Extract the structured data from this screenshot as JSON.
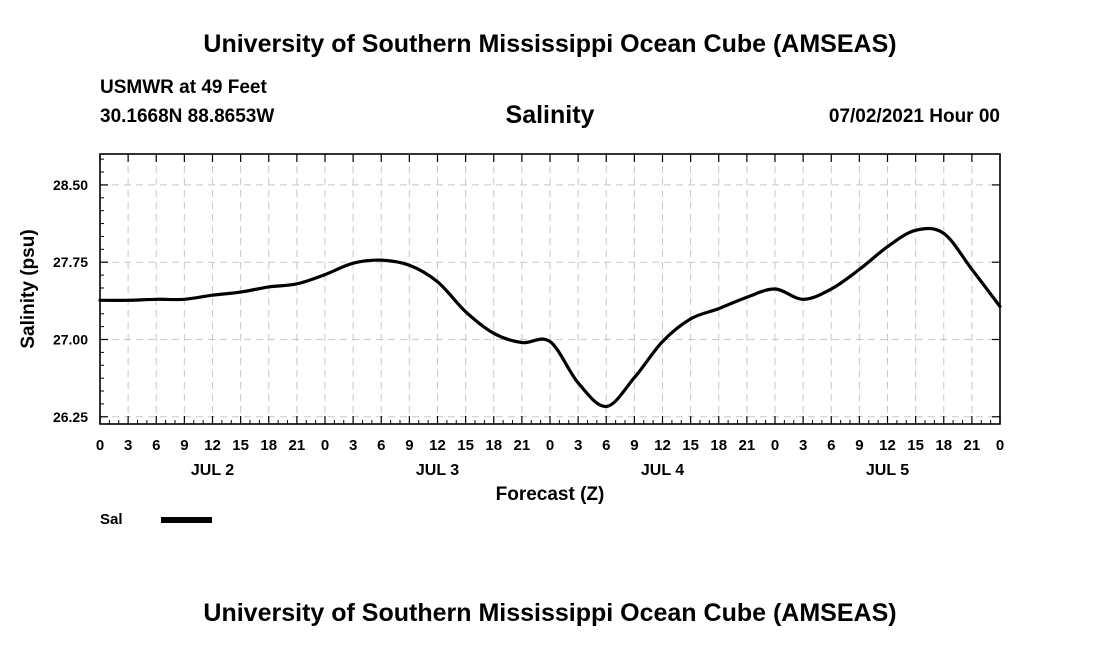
{
  "header": {
    "title": "University of Southern Mississippi Ocean Cube (AMSEAS)",
    "station": "USMWR at 49 Feet",
    "coords": "30.1668N  88.8653W",
    "parameter": "Salinity",
    "datetime": "07/02/2021 Hour 00"
  },
  "footer": {
    "title": "University of Southern Mississippi Ocean Cube (AMSEAS)"
  },
  "chart_data": {
    "type": "line",
    "title": "Salinity",
    "xlabel": "Forecast (Z)",
    "ylabel": "Salinity (psu)",
    "ylim": [
      26.18,
      28.8
    ],
    "yticks": [
      26.25,
      27.0,
      27.75,
      28.5
    ],
    "ytick_labels": [
      "26.25",
      "27.00",
      "27.75",
      "28.50"
    ],
    "xlim": [
      0,
      96
    ],
    "xtick_hours": [
      0,
      3,
      6,
      9,
      12,
      15,
      18,
      21,
      24,
      27,
      30,
      33,
      36,
      39,
      42,
      45,
      48,
      51,
      54,
      57,
      60,
      63,
      66,
      69,
      72,
      75,
      78,
      81,
      84,
      87,
      90,
      93,
      96
    ],
    "xtick_labels": [
      "0",
      "3",
      "6",
      "9",
      "12",
      "15",
      "18",
      "21",
      "0",
      "3",
      "6",
      "9",
      "12",
      "15",
      "18",
      "21",
      "0",
      "3",
      "6",
      "9",
      "12",
      "15",
      "18",
      "21",
      "0",
      "3",
      "6",
      "9",
      "12",
      "15",
      "18",
      "21",
      "0"
    ],
    "day_labels": [
      {
        "hour": 12,
        "label": "JUL 2"
      },
      {
        "hour": 36,
        "label": "JUL 3"
      },
      {
        "hour": 60,
        "label": "JUL 4"
      },
      {
        "hour": 84,
        "label": "JUL 5"
      }
    ],
    "grid": true,
    "legend": "bottom-left",
    "series": [
      {
        "name": "Sal",
        "x": [
          0,
          3,
          6,
          9,
          12,
          15,
          18,
          21,
          24,
          27,
          30,
          33,
          36,
          39,
          42,
          45,
          48,
          51,
          54,
          57,
          60,
          63,
          66,
          69,
          72,
          75,
          78,
          81,
          84,
          87,
          90,
          93,
          96
        ],
        "values": [
          27.38,
          27.38,
          27.39,
          27.39,
          27.43,
          27.46,
          27.51,
          27.54,
          27.63,
          27.74,
          27.77,
          27.72,
          27.56,
          27.27,
          27.06,
          26.97,
          26.98,
          26.58,
          26.35,
          26.63,
          26.98,
          27.2,
          27.3,
          27.41,
          27.49,
          27.39,
          27.49,
          27.68,
          27.9,
          28.06,
          28.03,
          27.68,
          27.32
        ]
      }
    ]
  }
}
